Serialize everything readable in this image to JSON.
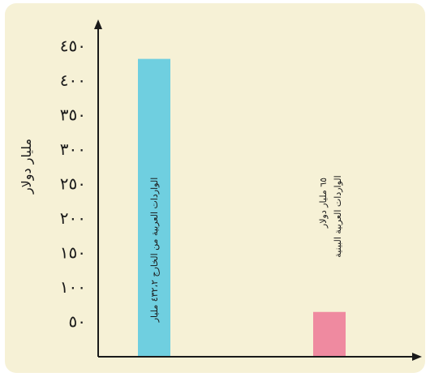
{
  "chart_data": {
    "type": "bar",
    "title": "",
    "ylabel": "مليار دولار",
    "xlabel": "",
    "ylim": [
      0,
      450
    ],
    "ytick_labels": [
      "٥٠",
      "١٠٠",
      "١٥٠",
      "٢٠٠",
      "٢٥٠",
      "٣٠٠",
      "٣٥٠",
      "٤٠٠",
      "٤٥٠"
    ],
    "ytick_values": [
      50,
      100,
      150,
      200,
      250,
      300,
      350,
      400,
      450
    ],
    "categories": [
      "الواردات العربية من الخارج",
      "الواردات العربية البينية"
    ],
    "values": [
      432.2,
      65
    ],
    "bar_labels": [
      "الواردات العربية من الخارج ٤٣٢،٢ مليار",
      "الواردات العربية البينية ٦٥ مليار دولار"
    ],
    "colors": [
      "#6fcfe0",
      "#ef8aa0"
    ],
    "grid": false,
    "legend": "none"
  },
  "colors": {
    "background": "#f6f1d6",
    "axis": "#1a1a1a"
  }
}
